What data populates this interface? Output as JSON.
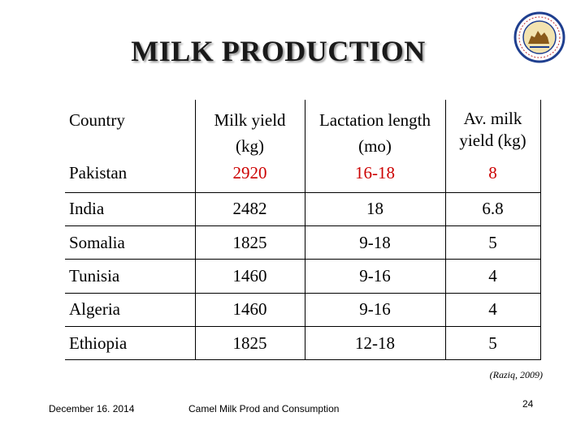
{
  "slide": {
    "title": "MILK PRODUCTION",
    "citation": "(Raziq, 2009)",
    "footer_date": "December 16. 2014",
    "footer_title": "Camel Milk Prod and Consumption",
    "page_number": "24",
    "logo_icon": "camel-association-logo-icon",
    "highlight_color": "#cc0000"
  },
  "table": {
    "headers": [
      "Country",
      "Milk yield (kg)",
      "Lactation length (mo)",
      "Av. milk yield (kg)"
    ],
    "rows": [
      {
        "country": "Pakistan",
        "milk_yield": "2920",
        "lactation": "16-18",
        "avg_yield": "8"
      },
      {
        "country": "India",
        "milk_yield": "2482",
        "lactation": "18",
        "avg_yield": "6.8"
      },
      {
        "country": "Somalia",
        "milk_yield": "1825",
        "lactation": "9-18",
        "avg_yield": "5"
      },
      {
        "country": "Tunisia",
        "milk_yield": "1460",
        "lactation": "9-16",
        "avg_yield": "4"
      },
      {
        "country": "Algeria",
        "milk_yield": "1460",
        "lactation": "9-16",
        "avg_yield": "4"
      },
      {
        "country": "Ethiopia",
        "milk_yield": "1825",
        "lactation": "12-18",
        "avg_yield": "5"
      }
    ]
  }
}
